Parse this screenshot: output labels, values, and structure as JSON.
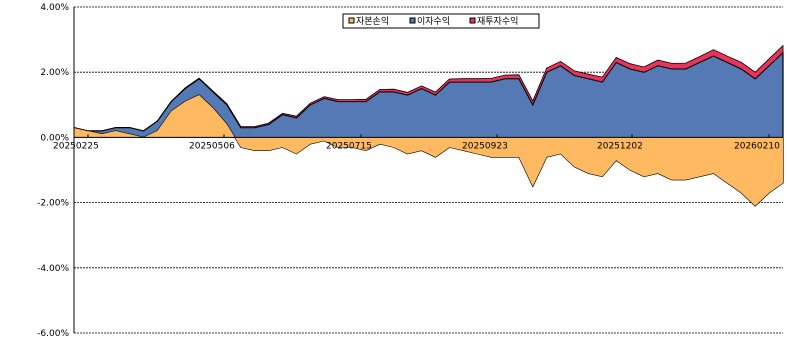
{
  "chart_data": {
    "type": "area",
    "title": "",
    "xlabel": "",
    "ylabel": "",
    "ylim": [
      -6,
      4
    ],
    "y_ticks": [
      4,
      2,
      0,
      -2,
      -4,
      -6
    ],
    "y_tick_labels": [
      "4.00%",
      "2.00%",
      "0.00%",
      "-2.00%",
      "-4.00%",
      "-6.00%"
    ],
    "grid": true,
    "legend_position": "top-center",
    "x_start_label": "20250225",
    "x_end_label": "20260218",
    "x_ticks": [
      "20250225",
      "20250506",
      "20250715",
      "20250923",
      "20251202",
      "20260210"
    ],
    "x_tick_labels": [
      "20250225",
      "20250506",
      "20250715",
      "20250923",
      "20251202",
      "20260210"
    ],
    "x_values": [
      "20250225",
      "20250304",
      "20250311",
      "20250318",
      "20250325",
      "20250401",
      "20250408",
      "20250415",
      "20250422",
      "20250429",
      "20250506",
      "20250513",
      "20250520",
      "20250527",
      "20250603",
      "20250610",
      "20250617",
      "20250624",
      "20250701",
      "20250708",
      "20250715",
      "20250722",
      "20250729",
      "20250805",
      "20250812",
      "20250819",
      "20250826",
      "20250902",
      "20250909",
      "20250916",
      "20250923",
      "20250930",
      "20251007",
      "20251014",
      "20251021",
      "20251028",
      "20251104",
      "20251111",
      "20251118",
      "20251125",
      "20251202",
      "20251209",
      "20251216",
      "20251223",
      "20251230",
      "20260106",
      "20260113",
      "20260120",
      "20260127",
      "20260203",
      "20260210",
      "20260218"
    ],
    "series": [
      {
        "name": "자본손익",
        "color": "#FFB961",
        "values": [
          0.3,
          0.2,
          0.1,
          0.2,
          0.1,
          0.0,
          0.2,
          0.8,
          1.1,
          1.3,
          0.9,
          0.4,
          -0.3,
          -0.4,
          -0.4,
          -0.3,
          -0.5,
          -0.2,
          -0.1,
          -0.3,
          -0.3,
          -0.4,
          -0.2,
          -0.3,
          -0.5,
          -0.4,
          -0.6,
          -0.3,
          -0.4,
          -0.5,
          -0.6,
          -0.6,
          -0.6,
          -1.5,
          -0.6,
          -0.5,
          -0.9,
          -1.1,
          -1.2,
          -0.7,
          -1.0,
          -1.2,
          -1.1,
          -1.3,
          -1.3,
          -1.2,
          -1.1,
          -1.4,
          -1.7,
          -2.1,
          -1.7,
          -1.4
        ]
      },
      {
        "name": "이자수익",
        "color": "#5479B4",
        "values": [
          0.0,
          0.0,
          0.1,
          0.1,
          0.2,
          0.2,
          0.3,
          0.3,
          0.4,
          0.5,
          0.5,
          0.6,
          0.6,
          0.7,
          0.8,
          1.0,
          1.1,
          1.2,
          1.3,
          1.4,
          1.4,
          1.5,
          1.6,
          1.7,
          1.8,
          1.9,
          1.9,
          2.0,
          2.1,
          2.2,
          2.3,
          2.4,
          2.4,
          2.5,
          2.6,
          2.7,
          2.8,
          2.9,
          2.9,
          3.0,
          3.1,
          3.2,
          3.3,
          3.4,
          3.4,
          3.5,
          3.6,
          3.7,
          3.8,
          3.9,
          3.9,
          4.0
        ]
      },
      {
        "name": "재투자수익",
        "color": "#E8335A",
        "values": [
          0.0,
          0.0,
          0.0,
          0.0,
          0.0,
          0.0,
          0.01,
          0.01,
          0.02,
          0.02,
          0.02,
          0.03,
          0.03,
          0.03,
          0.04,
          0.04,
          0.05,
          0.05,
          0.05,
          0.06,
          0.06,
          0.07,
          0.07,
          0.08,
          0.08,
          0.08,
          0.09,
          0.09,
          0.1,
          0.1,
          0.11,
          0.11,
          0.12,
          0.12,
          0.13,
          0.13,
          0.14,
          0.14,
          0.15,
          0.15,
          0.16,
          0.16,
          0.17,
          0.17,
          0.18,
          0.18,
          0.19,
          0.19,
          0.2,
          0.2,
          0.21,
          0.22
        ]
      }
    ]
  }
}
